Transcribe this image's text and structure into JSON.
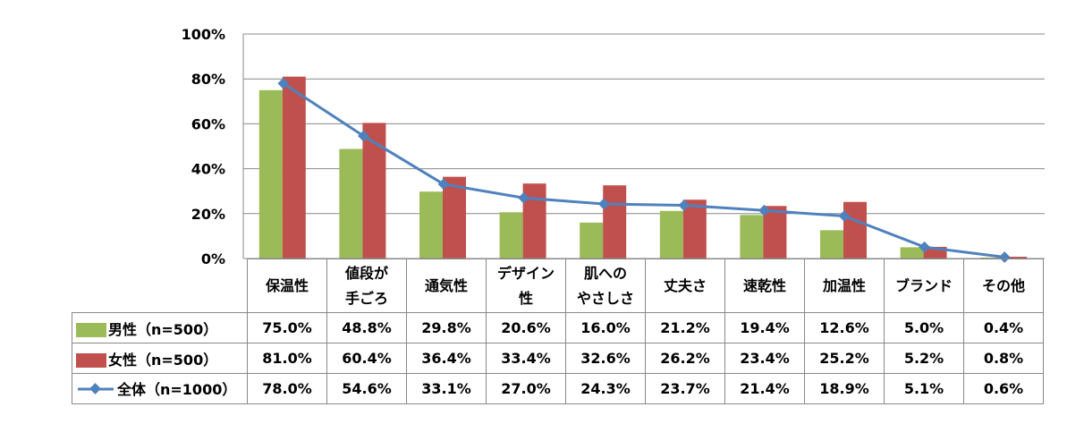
{
  "chart_data": {
    "type": "bar",
    "title": "",
    "categories": [
      "保温性",
      "値段が\n手ごろ",
      "通気性",
      "デザイン\n性",
      "肌への\nやさしさ",
      "丈夫さ",
      "速乾性",
      "加温性",
      "ブランド",
      "その他"
    ],
    "series": [
      {
        "name": "男性（n=500）",
        "type": "bar",
        "color": "#9BBB59",
        "values": [
          75.0,
          48.8,
          29.8,
          20.6,
          16.0,
          21.2,
          19.4,
          12.6,
          5.0,
          0.4
        ],
        "labels": [
          "75.0%",
          "48.8%",
          "29.8%",
          "20.6%",
          "16.0%",
          "21.2%",
          "19.4%",
          "12.6%",
          "5.0%",
          "0.4%"
        ]
      },
      {
        "name": "女性（n=500）",
        "type": "bar",
        "color": "#C0504D",
        "values": [
          81.0,
          60.4,
          36.4,
          33.4,
          32.6,
          26.2,
          23.4,
          25.2,
          5.2,
          0.8
        ],
        "labels": [
          "81.0%",
          "60.4%",
          "36.4%",
          "33.4%",
          "32.6%",
          "26.2%",
          "23.4%",
          "25.2%",
          "5.2%",
          "0.8%"
        ]
      },
      {
        "name": "全体（n=1000）",
        "type": "line",
        "color": "#4F81BD",
        "values": [
          78.0,
          54.6,
          33.1,
          27.0,
          24.3,
          23.7,
          21.4,
          18.9,
          5.1,
          0.6
        ],
        "labels": [
          "78.0%",
          "54.6%",
          "33.1%",
          "27.0%",
          "24.3%",
          "23.7%",
          "21.4%",
          "18.9%",
          "5.1%",
          "0.6%"
        ]
      }
    ],
    "yticks": [
      "0%",
      "20%",
      "40%",
      "60%",
      "80%",
      "100%"
    ],
    "ylim": [
      0,
      100
    ],
    "grid": true,
    "legend": "data-table"
  }
}
